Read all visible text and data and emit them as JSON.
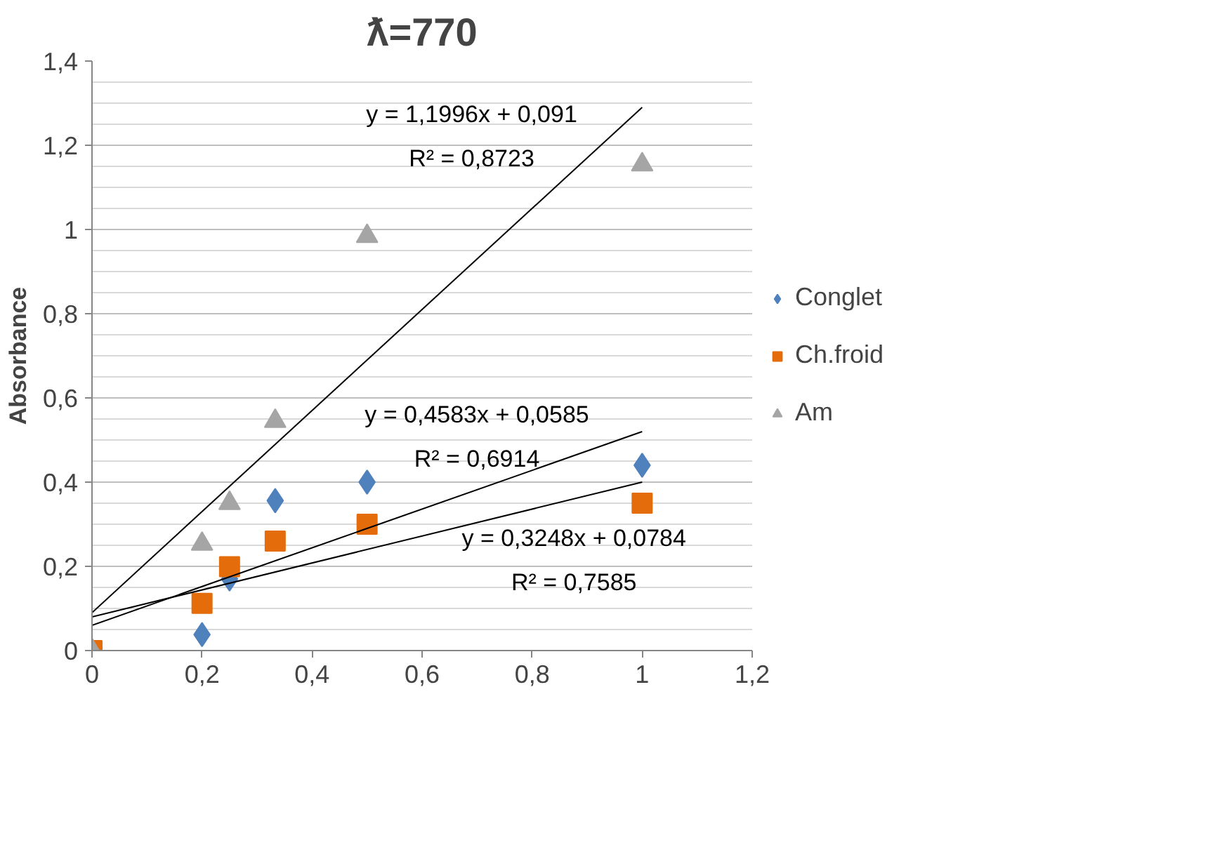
{
  "chart_data": {
    "type": "scatter",
    "title": "ƛ=770",
    "ylabel": "Absorbance",
    "x": [
      0,
      0.2,
      0.25,
      0.333,
      0.5,
      1
    ],
    "series": [
      {
        "name": "Conglet",
        "color": "#4f81bd",
        "marker": "diamond",
        "values": [
          null,
          0.038,
          0.17,
          0.356,
          0.4,
          0.44
        ]
      },
      {
        "name": "Ch.froid",
        "color": "#e46c0a",
        "marker": "square",
        "values": [
          0,
          0.112,
          0.199,
          0.26,
          0.3,
          0.35
        ]
      },
      {
        "name": "Am",
        "color": "#a5a5a5",
        "marker": "triangle",
        "values": [
          0,
          0.253,
          0.35,
          0.545,
          0.984,
          1.154
        ]
      },
      {
        "type": "line",
        "color": "#000000",
        "marker": "none",
        "values": [
          0.09,
          null,
          null,
          null,
          null,
          1.29
        ]
      },
      {
        "type": "line",
        "color": "#000000",
        "marker": "none",
        "values": [
          0.06,
          null,
          null,
          null,
          null,
          0.52
        ]
      },
      {
        "type": "line",
        "color": "#000000",
        "marker": "none",
        "values": [
          0.08,
          null,
          null,
          null,
          null,
          0.4
        ]
      }
    ],
    "annotations": [
      "y = 1,1996x + 0,091",
      "R² = 0,8723",
      "y = 0,4583x + 0,0585",
      "R² = 0,6914",
      "y = 0,3248x + 0,0784",
      "R² = 0,7585"
    ],
    "xlim": [
      0,
      1.2
    ],
    "ylim": [
      0,
      1.4
    ],
    "xticks": [
      0,
      {
        "value": 0.2,
        "label": "0,2"
      },
      {
        "value": 0.4,
        "label": "0,4"
      },
      {
        "value": 0.6,
        "label": "0,6"
      },
      {
        "value": 0.8,
        "label": "0,8"
      },
      1,
      {
        "value": 1.2,
        "label": "1,2"
      }
    ],
    "yticks": [
      0,
      {
        "value": 0.2,
        "label": "0,2"
      },
      {
        "value": 0.4,
        "label": "0,4"
      },
      {
        "value": 0.6,
        "label": "0,6"
      },
      {
        "value": 0.8,
        "label": "0,8"
      },
      1,
      {
        "value": 1.2,
        "label": "1,2"
      },
      {
        "value": 1.4,
        "label": "1,4"
      }
    ],
    "grid": "y",
    "legend": "right",
    "line_style": "solid"
  }
}
